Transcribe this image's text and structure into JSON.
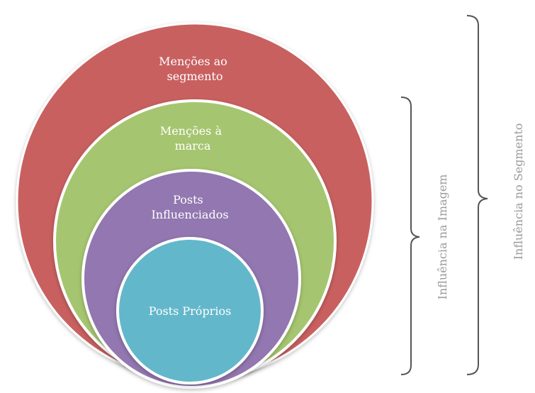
{
  "diagram": {
    "rings": [
      {
        "id": "segment",
        "lines": [
          "Menções ao",
          "segmento"
        ],
        "color": "#c96161"
      },
      {
        "id": "brand",
        "lines": [
          "Menções à",
          "marca"
        ],
        "color": "#a6c56f"
      },
      {
        "id": "influenced",
        "lines": [
          "Posts",
          "Influenciados"
        ],
        "color": "#9277b0"
      },
      {
        "id": "own",
        "lines": [
          "Posts Próprios"
        ],
        "color": "#64b7cb"
      }
    ],
    "brackets": [
      {
        "id": "image",
        "label": "Influência na Imagem"
      },
      {
        "id": "segment",
        "label": "Influência no Segmento"
      }
    ],
    "ring_stroke": "#ffffff",
    "bracket_color": "#555555",
    "label_color": "#9a9a9a"
  }
}
